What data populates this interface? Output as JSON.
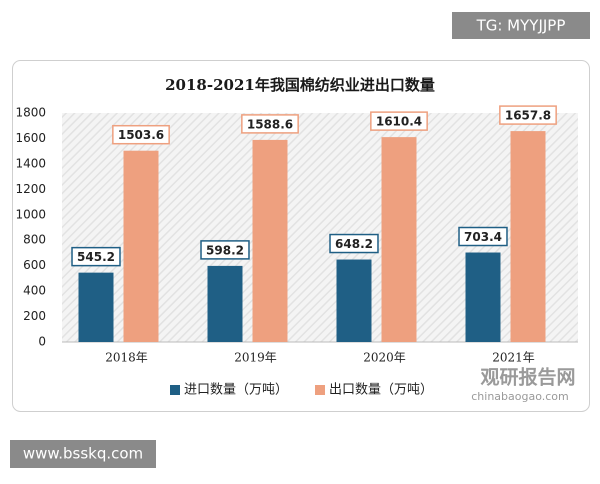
{
  "chart_data": {
    "type": "bar",
    "title": "2018-2021年我国棉纺织业进出口数量",
    "categories": [
      "2018年",
      "2019年",
      "2020年",
      "2021年"
    ],
    "series": [
      {
        "name": "进口数量（万吨）",
        "color": "#1f5f85",
        "values": [
          545.2,
          598.2,
          648.2,
          703.4
        ]
      },
      {
        "name": "出口数量（万吨）",
        "color": "#eea07f",
        "values": [
          1503.6,
          1588.6,
          1610.4,
          1657.8
        ]
      }
    ],
    "ylim": [
      0,
      1800
    ],
    "yticks": [
      0,
      200,
      400,
      600,
      800,
      1000,
      1200,
      1400,
      1600,
      1800
    ],
    "legend": "bottom"
  },
  "watermarks": {
    "top_right": "TG: MYYJJPP",
    "bottom_left": "www.bsskq.com",
    "logo_name": "观研报告网",
    "logo_url": "chinabaogao.com"
  }
}
